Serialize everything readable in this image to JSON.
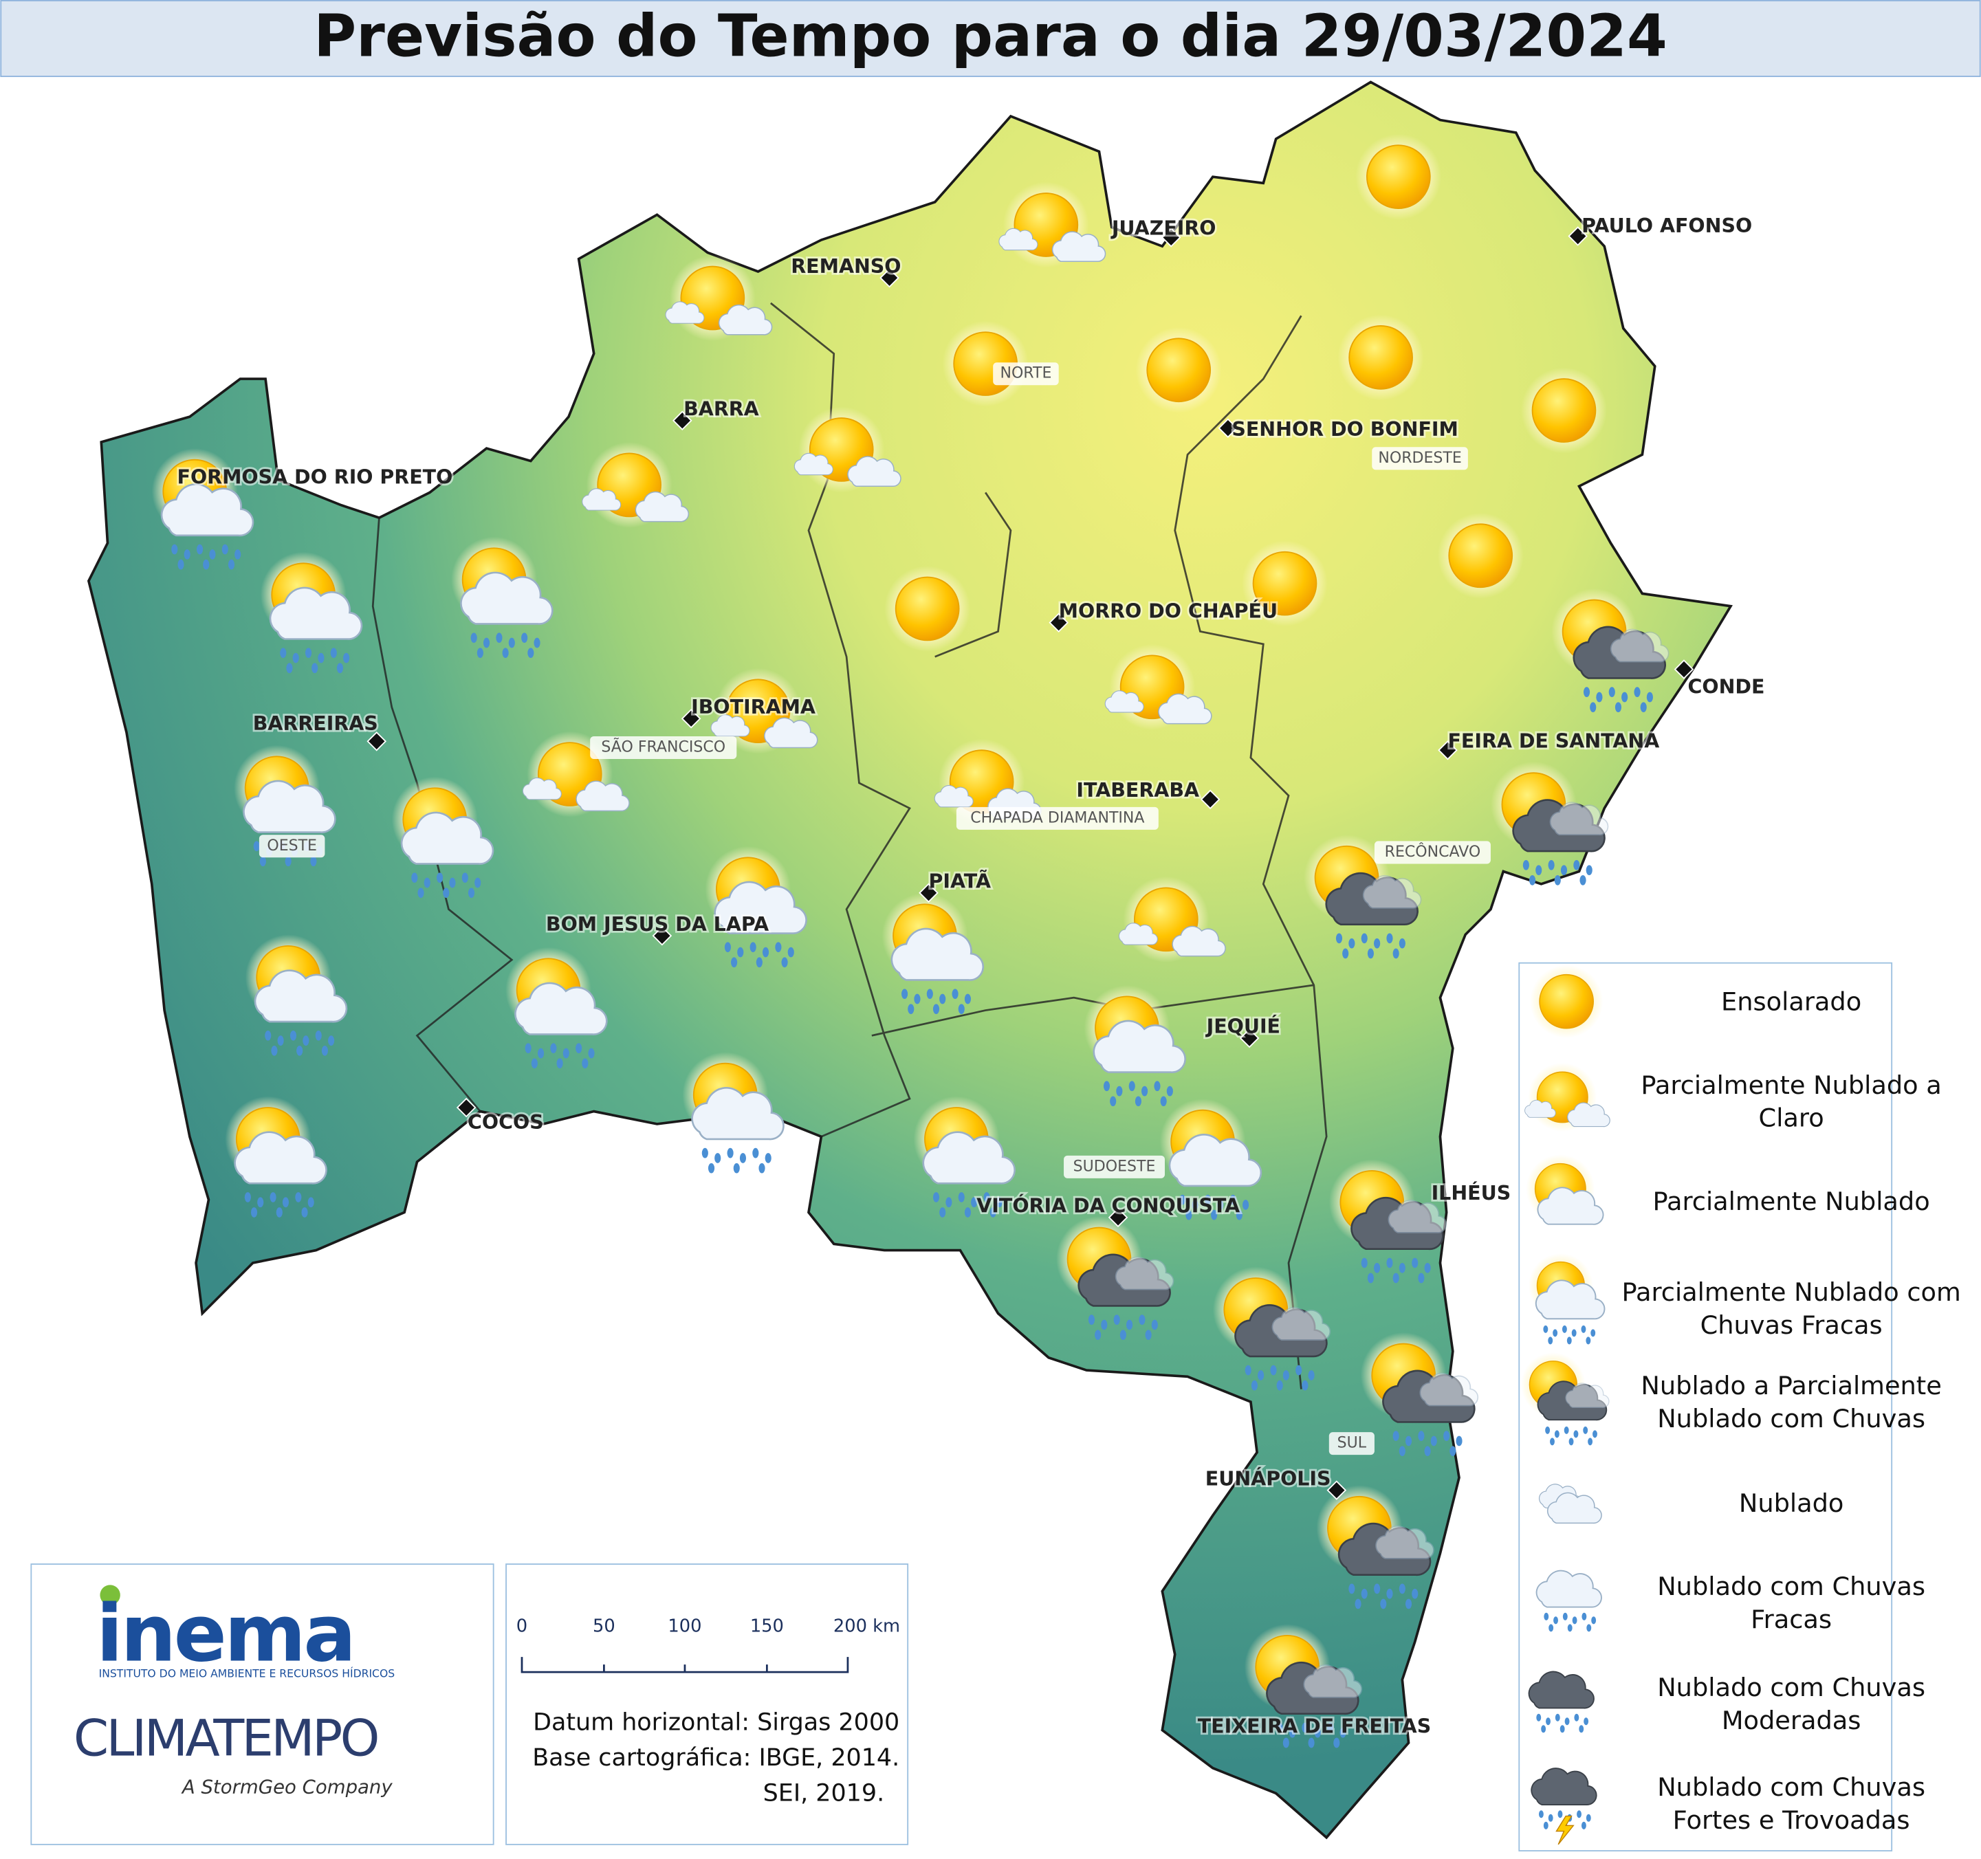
{
  "title": "Previsão do Tempo para o dia 29/03/2024",
  "cities": [
    "JUAZEIRO",
    "PAULO AFONSO",
    "REMANSO",
    "BARRA",
    "SENHOR DO BONFIM",
    "FORMOSA DO RIO PRETO",
    "MORRO DO CHAPÉU",
    "CONDE",
    "IBOTIRAMA",
    "BARREIRAS",
    "FEIRA DE SANTANA",
    "ITABERABA",
    "PIATÃ",
    "BOM JESUS DA LAPA",
    "JEQUIÉ",
    "COCOS",
    "VITÓRIA DA CONQUISTA",
    "ILHÉUS",
    "EUNÁPOLIS",
    "TEIXEIRA DE FREITAS"
  ],
  "regions": [
    "NORTE",
    "NORDESTE",
    "SÃO FRANCISCO",
    "OESTE",
    "CHAPADA DIAMANTINA",
    "RECÔNCAVO",
    "SUDOESTE",
    "SUL"
  ],
  "legend": [
    {
      "lines": [
        "Ensolarado"
      ]
    },
    {
      "lines": [
        "Parcialmente Nublado a",
        "Claro"
      ]
    },
    {
      "lines": [
        "Parcialmente Nublado"
      ]
    },
    {
      "lines": [
        "Parcialmente Nublado com",
        "Chuvas Fracas"
      ]
    },
    {
      "lines": [
        "Nublado a Parcialmente",
        "Nublado com Chuvas"
      ]
    },
    {
      "lines": [
        "Nublado"
      ]
    },
    {
      "lines": [
        "Nublado com Chuvas",
        "Fracas"
      ]
    },
    {
      "lines": [
        "Nublado com Chuvas",
        "Moderadas"
      ]
    },
    {
      "lines": [
        "Nublado com Chuvas",
        "Fortes e Trovoadas"
      ]
    }
  ],
  "scale": {
    "labels": [
      "0",
      "50",
      "100",
      "150",
      "200 km"
    ]
  },
  "notes": [
    "Datum horizontal: Sirgas 2000",
    "Base cartográfica: IBGE, 2014.",
    "SEI, 2019."
  ],
  "logos": {
    "inema": "inema",
    "inema_subtitle": "INSTITUTO DO MEIO AMBIENTE E RECURSOS HÍDRICOS",
    "climatempo": "CLIMATEMPO",
    "climatempo_subtitle": "A StormGeo Company"
  }
}
